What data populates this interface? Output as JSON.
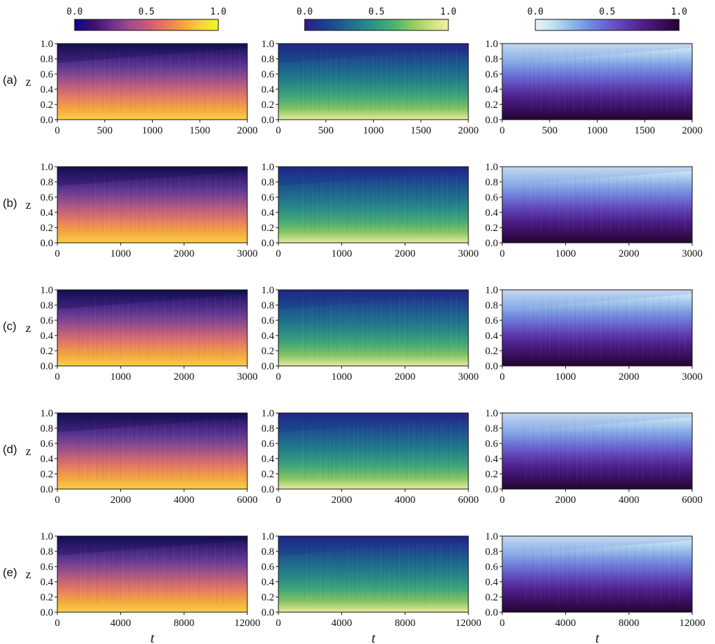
{
  "figure": {
    "z_label": "z",
    "t_label": "t"
  },
  "colorbars": [
    {
      "name": "plasma-like",
      "ticks": [
        "0.0",
        "0.5",
        "1.0"
      ],
      "stops": [
        "#0d0887",
        "#3b0f70",
        "#6a2c8e",
        "#9c4a8c",
        "#c9587a",
        "#e8765c",
        "#f7a13f",
        "#f9d23c",
        "#f0f921"
      ]
    },
    {
      "name": "viridis-like",
      "ticks": [
        "0.0",
        "0.5",
        "1.0"
      ],
      "stops": [
        "#2a1b8a",
        "#1f3b8f",
        "#1d5a8f",
        "#237a8d",
        "#2e9a83",
        "#4bb46e",
        "#8fcc5e",
        "#c9e07a",
        "#f4f0a8"
      ]
    },
    {
      "name": "dense-like",
      "ticks": [
        "0.0",
        "0.5",
        "1.0"
      ],
      "stops": [
        "#e8f6f8",
        "#bfe0ef",
        "#8fb9ea",
        "#6f8ee0",
        "#6a5fd0",
        "#5f3ab0",
        "#4f1f8a",
        "#3a0e5e",
        "#22052e"
      ]
    }
  ],
  "chart_data": [
    {
      "type": "heatmap",
      "row": "(a)",
      "xlim": [
        0,
        2000
      ],
      "ylim": [
        0.0,
        1.0
      ],
      "xticks": [
        "0",
        "500",
        "1000",
        "1500",
        "2000"
      ],
      "yticks": [
        "0.0",
        "0.2",
        "0.4",
        "0.6",
        "0.8",
        "1.0"
      ],
      "xlabel": ""
    },
    {
      "type": "heatmap",
      "row": "(b)",
      "xlim": [
        0,
        3000
      ],
      "ylim": [
        0.0,
        1.0
      ],
      "xticks": [
        "0",
        "1000",
        "2000",
        "3000"
      ],
      "yticks": [
        "0.0",
        "0.2",
        "0.4",
        "0.6",
        "0.8",
        "1.0"
      ],
      "xlabel": ""
    },
    {
      "type": "heatmap",
      "row": "(c)",
      "xlim": [
        0,
        3000
      ],
      "ylim": [
        0.0,
        1.0
      ],
      "xticks": [
        "0",
        "1000",
        "2000",
        "3000"
      ],
      "yticks": [
        "0.0",
        "0.2",
        "0.4",
        "0.6",
        "0.8",
        "1.0"
      ],
      "xlabel": ""
    },
    {
      "type": "heatmap",
      "row": "(d)",
      "xlim": [
        0,
        6000
      ],
      "ylim": [
        0.0,
        1.0
      ],
      "xticks": [
        "0",
        "2000",
        "4000",
        "6000"
      ],
      "yticks": [
        "0.0",
        "0.2",
        "0.4",
        "0.6",
        "0.8",
        "1.0"
      ],
      "xlabel": ""
    },
    {
      "type": "heatmap",
      "row": "(e)",
      "xlim": [
        0,
        12000
      ],
      "ylim": [
        0.0,
        1.0
      ],
      "xticks": [
        "0",
        "4000",
        "8000",
        "12000"
      ],
      "yticks": [
        "0.0",
        "0.2",
        "0.4",
        "0.6",
        "0.8",
        "1.0"
      ],
      "xlabel": "t"
    }
  ]
}
